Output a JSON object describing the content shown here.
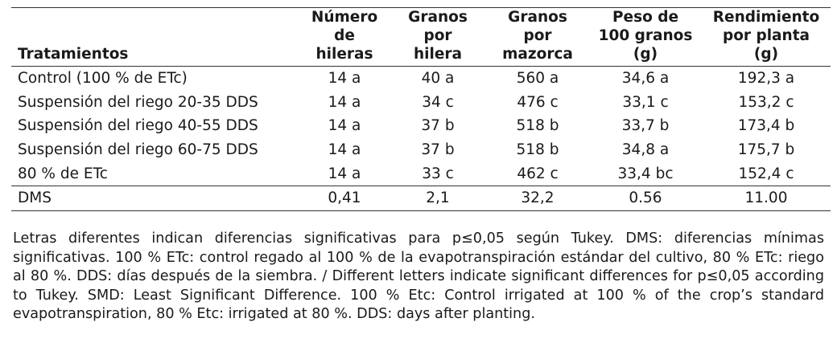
{
  "table": {
    "headers": [
      [
        "Tratamientos"
      ],
      [
        "Número",
        "de",
        "hileras"
      ],
      [
        "Granos",
        "por",
        "hilera"
      ],
      [
        "Granos",
        "por",
        "mazorca"
      ],
      [
        "Peso de",
        "100 granos",
        "(g)"
      ],
      [
        "Rendimiento",
        "por planta",
        "(g)"
      ]
    ],
    "rows": [
      [
        "Control (100 % de ETc)",
        "14 a",
        "40 a",
        "560 a",
        "34,6 a",
        "192,3 a"
      ],
      [
        "Suspensión del riego 20-35 DDS",
        "14 a",
        "34 c",
        "476 c",
        "33,1 c",
        "153,2 c"
      ],
      [
        "Suspensión del riego 40-55 DDS",
        "14 a",
        "37 b",
        "518 b",
        "33,7 b",
        "173,4 b"
      ],
      [
        "Suspensión del riego 60-75 DDS",
        "14 a",
        "37 b",
        "518 b",
        "34,8 a",
        "175,7 b"
      ],
      [
        "80 % de ETc",
        "14 a",
        "33 c",
        "462 c",
        "33,4 bc",
        "152,4 c"
      ]
    ],
    "dms_row": [
      "DMS",
      "0,41",
      "2,1",
      "32,2",
      "0.56",
      "11.00"
    ]
  },
  "footnote": "Letras diferentes indican diferencias significativas para p≤0,05 según Tukey. DMS: diferencias mínimas significativas. 100 % ETc: control regado al 100 % de la evapotranspiración estándar del cultivo, 80 % ETc: riego al 80 %. DDS: días después de la siembra. / Different letters indicate significant differences for p≤0,05 according to Tukey. SMD: Least Significant Difference. 100 % Etc: Control irrigated at 100 % of the crop’s standard evapotranspiration, 80 % Etc: irrigated at 80 %. DDS: days after planting."
}
